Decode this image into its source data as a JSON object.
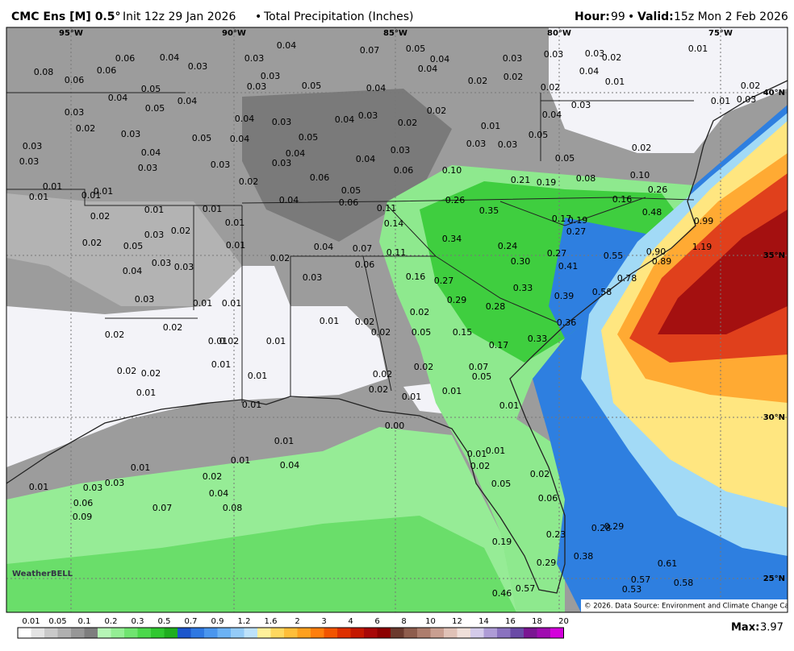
{
  "header": {
    "model": "CMC Ens [M] 0.5°",
    "init": "Init 12z 29 Jan 2026",
    "separator": "•",
    "product": "Total Precipitation (Inches)",
    "hour_label": "Hour:",
    "hour": "99",
    "valid_label": "Valid:",
    "valid": "15z Mon 2 Feb 2026"
  },
  "map": {
    "lon_labels": [
      "95°W",
      "90°W",
      "85°W",
      "80°W",
      "75°W"
    ],
    "lat_labels": [
      "40°N",
      "35°N",
      "30°N",
      "25°N"
    ],
    "logo": "WeatherBELL",
    "credit": "© 2026. Data Source: Environment and Climate Change Canada.",
    "point_values": [
      "0.06",
      "0.04",
      "0.03",
      "0.03",
      "0.04",
      "0.07",
      "0.05",
      "0.04",
      "0.03",
      "0.03",
      "0.03",
      "0.02",
      "0.01",
      "0.08",
      "0.06",
      "0.06",
      "0.05",
      "0.04",
      "0.03",
      "0.03",
      "0.05",
      "0.04",
      "0.04",
      "0.02",
      "0.02",
      "0.04",
      "0.01",
      "0.02",
      "0.02",
      "0.04",
      "0.03",
      "0.05",
      "0.04",
      "0.03",
      "0.04",
      "0.03",
      "0.02",
      "0.04",
      "0.03",
      "0.01",
      "0.03",
      "0.02",
      "0.03",
      "0.05",
      "0.04",
      "0.05",
      "0.02",
      "0.01",
      "0.05",
      "0.03",
      "0.04",
      "0.04",
      "0.04",
      "0.03",
      "0.03",
      "0.03",
      "0.05",
      "0.02",
      "0.03",
      "0.03",
      "0.03",
      "0.03",
      "0.06",
      "0.06",
      "0.10",
      "0.21",
      "0.19",
      "0.08",
      "0.10",
      "0.02",
      "0.01",
      "0.01",
      "0.01",
      "0.01",
      "0.04",
      "0.05",
      "0.06",
      "0.26",
      "0.16",
      "0.26",
      "0.02",
      "0.01",
      "0.01",
      "0.11",
      "0.35",
      "0.17",
      "0.19",
      "0.48",
      "0.99",
      "0.01",
      "0.14",
      "0.27",
      "0.03",
      "0.02",
      "0.02",
      "0.34",
      "0.05",
      "0.01",
      "0.04",
      "0.07",
      "0.24",
      "1.19",
      "0.02",
      "0.03",
      "0.11",
      "0.27",
      "0.55",
      "0.90",
      "0.04",
      "0.03",
      "0.06",
      "0.30",
      "0.41",
      "0.89",
      "0.03",
      "0.16",
      "0.27",
      "0.78",
      "0.33",
      "0.58",
      "0.39",
      "0.29",
      "0.28",
      "0.03",
      "0.01",
      "0.01",
      "0.02",
      "0.01",
      "0.02",
      "0.36",
      "0.02",
      "0.02",
      "0.02",
      "0.05",
      "0.15",
      "0.01",
      "0.02",
      "0.01",
      "0.17",
      "0.33",
      "0.01",
      "0.02",
      "0.02",
      "0.02",
      "0.07",
      "0.05",
      "0.01",
      "0.02",
      "0.01",
      "0.02",
      "0.01",
      "0.01",
      "0.01",
      "0.01",
      "0.00",
      "0.01",
      "0.01",
      "0.01",
      "0.01",
      "0.04",
      "0.01",
      "0.02",
      "0.02",
      "0.02",
      "0.01",
      "0.03",
      "0.03",
      "0.05",
      "0.04",
      "0.06",
      "0.06",
      "0.07",
      "0.08",
      "0.09",
      "0.28",
      "0.29",
      "0.23",
      "0.19",
      "0.38",
      "0.29",
      "0.61",
      "0.57",
      "0.58",
      "0.53",
      "0.57",
      "0.46"
    ]
  },
  "colorbar": {
    "labels": [
      "0.01",
      "0.05",
      "0.1",
      "0.2",
      "0.3",
      "0.5",
      "0.7",
      "0.9",
      "1.2",
      "1.6",
      "2",
      "3",
      "4",
      "6",
      "8",
      "10",
      "12",
      "14",
      "16",
      "18",
      "20"
    ],
    "colors": [
      "#ffffff",
      "#e3e3e3",
      "#c9c9c9",
      "#b0b0b0",
      "#979797",
      "#7e7e7e",
      "#b6f5b6",
      "#94ee94",
      "#70e470",
      "#4cd84c",
      "#30c830",
      "#1fae1f",
      "#1c56cc",
      "#2e78e2",
      "#4a96ee",
      "#6cb2f4",
      "#94cbf8",
      "#bde2fb",
      "#fff09a",
      "#ffd860",
      "#ffbe3a",
      "#ffa01e",
      "#ff7e0c",
      "#f25400",
      "#de3000",
      "#c41800",
      "#a80808",
      "#8c0000",
      "#6b3a2e",
      "#8e5d4d",
      "#ad7d6d",
      "#c99f91",
      "#e0c2b7",
      "#efdfd9",
      "#d4cbea",
      "#ae9cd6",
      "#8a72bf",
      "#6a4aa6",
      "#7a1692",
      "#a00cb0",
      "#d400dc"
    ]
  },
  "footer": {
    "max_label": "Max:",
    "max_value": "3.97"
  }
}
